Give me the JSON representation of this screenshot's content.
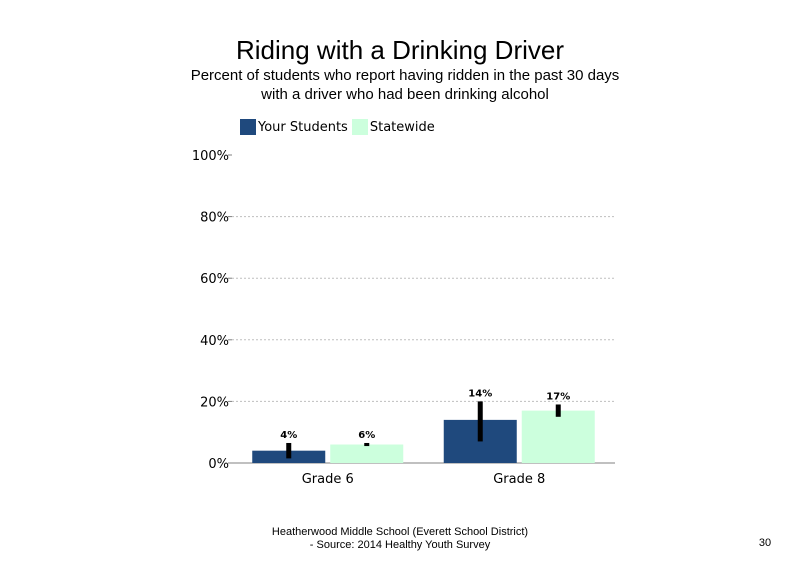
{
  "slide": {
    "page_number": "30"
  },
  "footer": {
    "line1": "Heatherwood Middle School (Everett School District)",
    "line2": "- Source: 2014 Healthy  Youth Survey"
  },
  "colors": {
    "your_students": "#1f497d",
    "statewide": "#ccffdd",
    "error_bar": "#000000",
    "grid": "#bfbfbf"
  },
  "chart_data": {
    "type": "bar",
    "title": "Riding with a Drinking Driver",
    "subtitle": "Percent of students  who report having ridden in the past 30 days\nwith a driver who had been drinking alcohol",
    "categories": [
      "Grade 6",
      "Grade 8"
    ],
    "series": [
      {
        "name": "Your Students",
        "values": [
          4,
          14
        ],
        "labels": [
          "4%",
          "14%"
        ],
        "error_low": [
          1.5,
          7
        ],
        "error_high": [
          6.5,
          20
        ]
      },
      {
        "name": "Statewide",
        "values": [
          6,
          17
        ],
        "labels": [
          "6%",
          "17%"
        ],
        "error_low": [
          5.5,
          15
        ],
        "error_high": [
          6.5,
          19
        ]
      }
    ],
    "ylim": [
      0,
      100
    ],
    "yticks": [
      0,
      20,
      40,
      60,
      80,
      100
    ],
    "ytick_labels": [
      "0%",
      "20%",
      "40%",
      "60%",
      "80%",
      "100%"
    ],
    "xlabel": "",
    "ylabel": "",
    "grid": true,
    "legend_position": "top-left"
  }
}
